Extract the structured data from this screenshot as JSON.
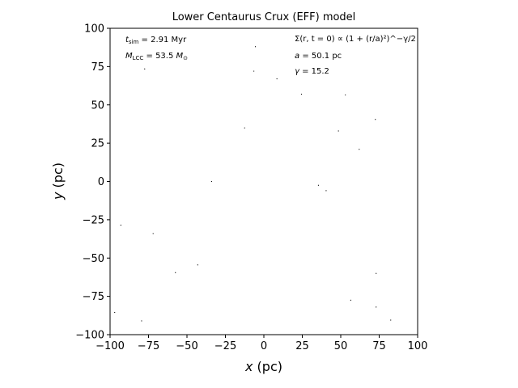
{
  "chart_data": {
    "type": "scatter",
    "title": "Lower Centaurus Crux (EFF) model",
    "xlabel_var": "x",
    "xlabel_unit": " (pc)",
    "ylabel_var": "y",
    "ylabel_unit": " (pc)",
    "xlim": [
      -100,
      100
    ],
    "ylim": [
      -100,
      100
    ],
    "xticks": [
      -100,
      -75,
      -50,
      -25,
      0,
      25,
      50,
      75,
      100
    ],
    "yticks": [
      -100,
      -75,
      -50,
      -25,
      0,
      25,
      50,
      75,
      100
    ],
    "xtick_labels": [
      "−100",
      "−75",
      "−50",
      "−25",
      "0",
      "25",
      "50",
      "75",
      "100"
    ],
    "ytick_labels": [
      "−100",
      "−75",
      "−50",
      "−25",
      "0",
      "25",
      "50",
      "75",
      "100"
    ],
    "grid": false,
    "marker_color": "#000000",
    "annotations_left": {
      "t_sim": {
        "symbol": "t",
        "sub": "sim",
        "value": " = 2.91 Myr"
      },
      "m_lcc": {
        "symbol": "M",
        "sub": "LCC",
        "value": " = 53.5 ",
        "unit": "M",
        "unit_sub": "⊙"
      }
    },
    "annotations_right": {
      "profile": "Σ(r, t = 0) ∝ (1 + (r/a)²)^−γ/2",
      "a": {
        "symbol": "a",
        "value": " = 50.1 pc"
      },
      "gamma": {
        "symbol": "γ",
        "value": " = 15.2"
      }
    },
    "points": [
      {
        "x": -5.5,
        "y": 88
      },
      {
        "x": -77.5,
        "y": 73.5
      },
      {
        "x": -6.5,
        "y": 72
      },
      {
        "x": 8.5,
        "y": 67
      },
      {
        "x": 24.5,
        "y": 57
      },
      {
        "x": 53,
        "y": 56.5
      },
      {
        "x": 72.5,
        "y": 40.5
      },
      {
        "x": -12.5,
        "y": 35
      },
      {
        "x": 48.5,
        "y": 33
      },
      {
        "x": 62,
        "y": 21
      },
      {
        "x": -34,
        "y": 0
      },
      {
        "x": 35.5,
        "y": -2.5
      },
      {
        "x": 40.5,
        "y": -6
      },
      {
        "x": -93,
        "y": -28.5
      },
      {
        "x": -72,
        "y": -34
      },
      {
        "x": -43,
        "y": -54.5
      },
      {
        "x": -57.5,
        "y": -59.5
      },
      {
        "x": 73,
        "y": -60
      },
      {
        "x": 56.5,
        "y": -77.5
      },
      {
        "x": 73,
        "y": -82
      },
      {
        "x": -97,
        "y": -85.5
      },
      {
        "x": -79.5,
        "y": -91
      },
      {
        "x": 82.5,
        "y": -90.5
      }
    ]
  }
}
